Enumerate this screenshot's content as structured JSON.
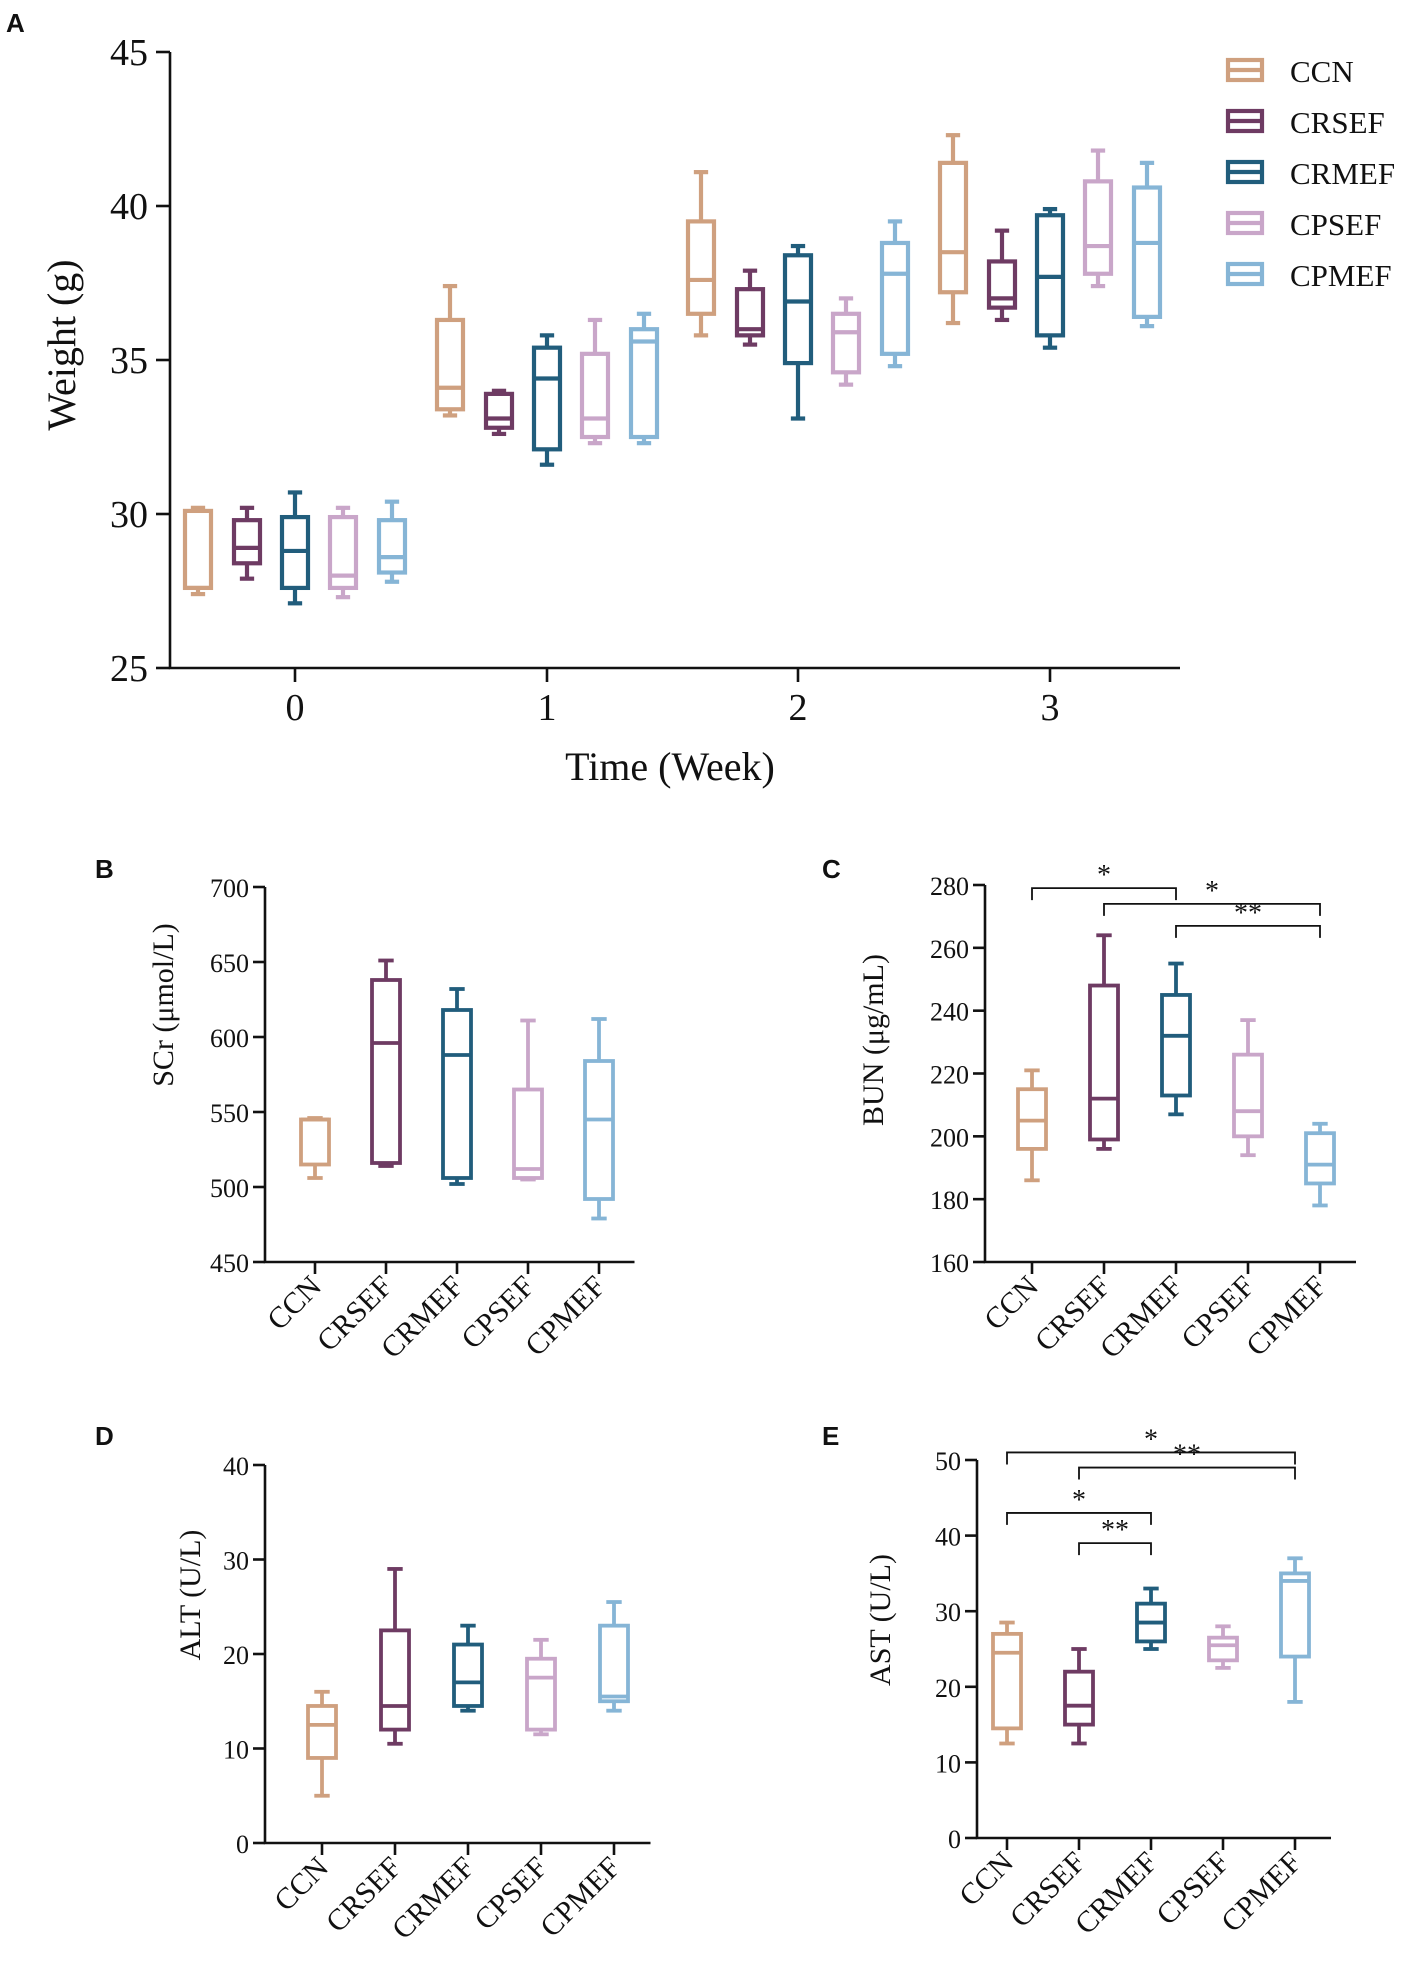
{
  "figure": {
    "series_names": [
      "CCN",
      "CRSEF",
      "CRMEF",
      "CPSEF",
      "CPMEF"
    ]
  },
  "chart_data": [
    {
      "panel": "A",
      "type": "boxplot",
      "title": "",
      "xlabel": "Time (Week)",
      "ylabel": "Weight (g)",
      "ylim": [
        25,
        45
      ],
      "yticks": [
        "25",
        "30",
        "35",
        "40",
        "45"
      ],
      "categories": [
        "0",
        "1",
        "2",
        "3"
      ],
      "legend": {
        "position": "top-right",
        "entries": [
          "CCN",
          "CRSEF",
          "CRMEF",
          "CPSEF",
          "CPMEF"
        ]
      },
      "series": [
        {
          "name": "CCN",
          "color": "#CFA07F",
          "boxes": [
            {
              "min": 27.4,
              "q1": 27.6,
              "median": 27.6,
              "q3": 30.1,
              "max": 30.2
            },
            {
              "min": 33.2,
              "q1": 33.4,
              "median": 34.1,
              "q3": 36.3,
              "max": 37.4
            },
            {
              "min": 35.8,
              "q1": 36.5,
              "median": 37.6,
              "q3": 39.5,
              "max": 41.1
            },
            {
              "min": 36.2,
              "q1": 37.2,
              "median": 38.5,
              "q3": 41.4,
              "max": 42.3
            }
          ]
        },
        {
          "name": "CRSEF",
          "color": "#6E3B63",
          "boxes": [
            {
              "min": 27.9,
              "q1": 28.4,
              "median": 28.9,
              "q3": 29.8,
              "max": 30.2
            },
            {
              "min": 32.6,
              "q1": 32.8,
              "median": 33.1,
              "q3": 33.9,
              "max": 34.0
            },
            {
              "min": 35.5,
              "q1": 35.8,
              "median": 36.0,
              "q3": 37.3,
              "max": 37.9
            },
            {
              "min": 36.3,
              "q1": 36.7,
              "median": 37.0,
              "q3": 38.2,
              "max": 39.2
            }
          ]
        },
        {
          "name": "CRMEF",
          "color": "#215D7C",
          "boxes": [
            {
              "min": 27.1,
              "q1": 27.6,
              "median": 28.8,
              "q3": 29.9,
              "max": 30.7
            },
            {
              "min": 31.6,
              "q1": 32.1,
              "median": 34.4,
              "q3": 35.4,
              "max": 35.8
            },
            {
              "min": 33.1,
              "q1": 34.9,
              "median": 36.9,
              "q3": 38.4,
              "max": 38.7
            },
            {
              "min": 35.4,
              "q1": 35.8,
              "median": 37.7,
              "q3": 39.7,
              "max": 39.9
            }
          ]
        },
        {
          "name": "CPSEF",
          "color": "#C9A6C9",
          "boxes": [
            {
              "min": 27.3,
              "q1": 27.6,
              "median": 28.0,
              "q3": 29.9,
              "max": 30.2
            },
            {
              "min": 32.3,
              "q1": 32.5,
              "median": 33.1,
              "q3": 35.2,
              "max": 36.3
            },
            {
              "min": 34.2,
              "q1": 34.6,
              "median": 35.9,
              "q3": 36.5,
              "max": 37.0
            },
            {
              "min": 37.4,
              "q1": 37.8,
              "median": 38.7,
              "q3": 40.8,
              "max": 41.8
            }
          ]
        },
        {
          "name": "CPMEF",
          "color": "#86B5D6",
          "boxes": [
            {
              "min": 27.8,
              "q1": 28.1,
              "median": 28.6,
              "q3": 29.8,
              "max": 30.4
            },
            {
              "min": 32.3,
              "q1": 32.5,
              "median": 35.6,
              "q3": 36.0,
              "max": 36.5
            },
            {
              "min": 34.8,
              "q1": 35.2,
              "median": 37.8,
              "q3": 38.8,
              "max": 39.5
            },
            {
              "min": 36.1,
              "q1": 36.4,
              "median": 38.8,
              "q3": 40.6,
              "max": 41.4
            }
          ]
        }
      ]
    },
    {
      "panel": "B",
      "type": "boxplot",
      "ylabel": "SCr (μmol/L)",
      "ylim": [
        450,
        700
      ],
      "yticks": [
        "450",
        "500",
        "550",
        "600",
        "650",
        "700"
      ],
      "categories": [
        "CCN",
        "CRSEF",
        "CRMEF",
        "CPSEF",
        "CPMEF"
      ],
      "boxes": [
        {
          "min": 506,
          "q1": 515,
          "median": 545,
          "q3": 545,
          "max": 546
        },
        {
          "min": 514,
          "q1": 516,
          "median": 596,
          "q3": 638,
          "max": 651
        },
        {
          "min": 502,
          "q1": 506,
          "median": 588,
          "q3": 618,
          "max": 632
        },
        {
          "min": 505,
          "q1": 506,
          "median": 512,
          "q3": 565,
          "max": 611
        },
        {
          "min": 479,
          "q1": 492,
          "median": 545,
          "q3": 584,
          "max": 612
        }
      ],
      "significance": []
    },
    {
      "panel": "C",
      "type": "boxplot",
      "ylabel": "BUN (μg/mL)",
      "ylim": [
        160,
        280
      ],
      "yticks": [
        "160",
        "180",
        "200",
        "220",
        "240",
        "260",
        "280"
      ],
      "categories": [
        "CCN",
        "CRSEF",
        "CRMEF",
        "CPSEF",
        "CPMEF"
      ],
      "boxes": [
        {
          "min": 186,
          "q1": 196,
          "median": 205,
          "q3": 215,
          "max": 221
        },
        {
          "min": 196,
          "q1": 199,
          "median": 212,
          "q3": 248,
          "max": 264
        },
        {
          "min": 207,
          "q1": 213,
          "median": 232,
          "q3": 245,
          "max": 255
        },
        {
          "min": 194,
          "q1": 200,
          "median": 208,
          "q3": 226,
          "max": 237
        },
        {
          "min": 178,
          "q1": 185,
          "median": 191,
          "q3": 201,
          "max": 204
        }
      ],
      "significance": [
        {
          "from": 0,
          "to": 2,
          "label": "*",
          "value": 279
        },
        {
          "from": 1,
          "to": 4,
          "label": "*",
          "value": 274
        },
        {
          "from": 2,
          "to": 4,
          "label": "**",
          "value": 267
        }
      ]
    },
    {
      "panel": "D",
      "type": "boxplot",
      "ylabel": "ALT (U/L)",
      "ylim": [
        0,
        40
      ],
      "yticks": [
        "0",
        "10",
        "20",
        "30",
        "40"
      ],
      "categories": [
        "CCN",
        "CRSEF",
        "CRMEF",
        "CPSEF",
        "CPMEF"
      ],
      "boxes": [
        {
          "min": 5.0,
          "q1": 9.0,
          "median": 12.5,
          "q3": 14.5,
          "max": 16.0
        },
        {
          "min": 10.5,
          "q1": 12.0,
          "median": 14.5,
          "q3": 22.5,
          "max": 29.0
        },
        {
          "min": 14.0,
          "q1": 14.5,
          "median": 17.0,
          "q3": 21.0,
          "max": 23.0
        },
        {
          "min": 11.5,
          "q1": 12.0,
          "median": 17.5,
          "q3": 19.5,
          "max": 21.5
        },
        {
          "min": 14.0,
          "q1": 15.0,
          "median": 15.5,
          "q3": 23.0,
          "max": 25.5
        }
      ],
      "significance": []
    },
    {
      "panel": "E",
      "type": "boxplot",
      "ylabel": "AST (U/L)",
      "ylim": [
        0,
        50
      ],
      "yticks": [
        "0",
        "10",
        "20",
        "30",
        "40",
        "50"
      ],
      "categories": [
        "CCN",
        "CRSEF",
        "CRMEF",
        "CPSEF",
        "CPMEF"
      ],
      "boxes": [
        {
          "min": 12.5,
          "q1": 14.5,
          "median": 24.5,
          "q3": 27.0,
          "max": 28.5
        },
        {
          "min": 12.5,
          "q1": 15.0,
          "median": 17.5,
          "q3": 22.0,
          "max": 25.0
        },
        {
          "min": 25.0,
          "q1": 26.0,
          "median": 28.5,
          "q3": 31.0,
          "max": 33.0
        },
        {
          "min": 22.5,
          "q1": 23.5,
          "median": 25.5,
          "q3": 26.5,
          "max": 28.0
        },
        {
          "min": 18.0,
          "q1": 24.0,
          "median": 34.0,
          "q3": 35.0,
          "max": 37.0
        }
      ],
      "significance": [
        {
          "from": 0,
          "to": 4,
          "label": "*",
          "value": 51
        },
        {
          "from": 1,
          "to": 4,
          "label": "**",
          "value": 49
        },
        {
          "from": 0,
          "to": 2,
          "label": "*",
          "value": 43
        },
        {
          "from": 1,
          "to": 2,
          "label": "**",
          "value": 39
        }
      ]
    }
  ]
}
